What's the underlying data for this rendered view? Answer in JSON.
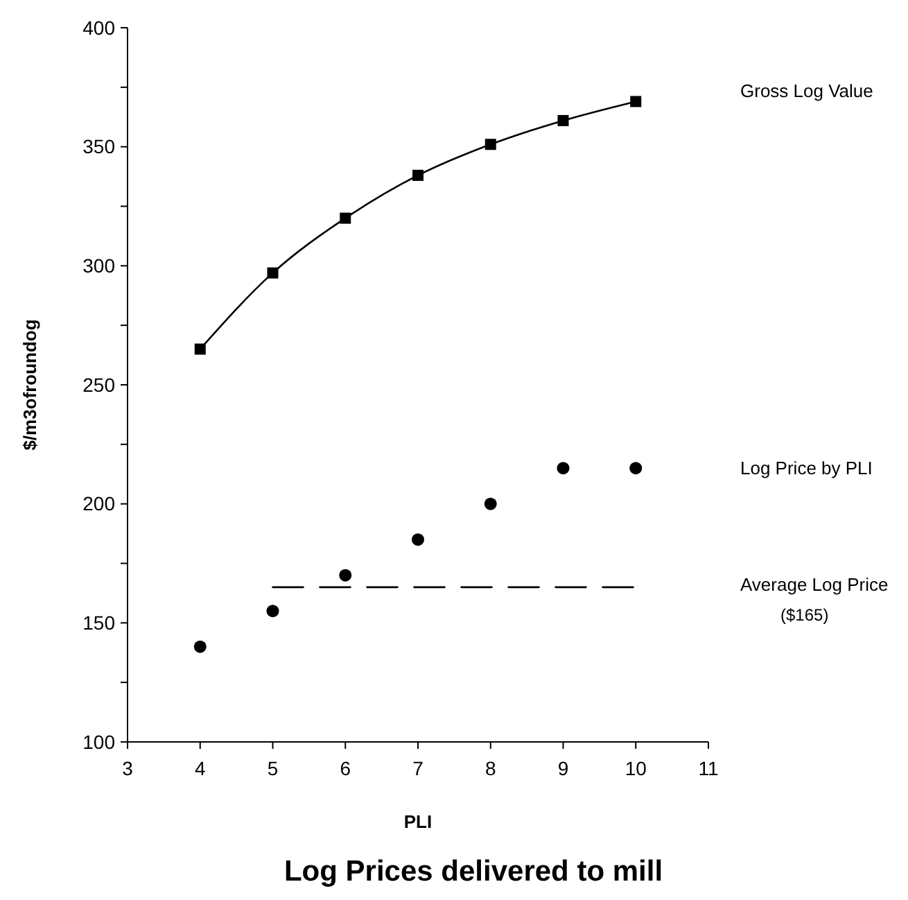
{
  "chart_data": {
    "type": "line",
    "title": "Log Prices delivered to mill",
    "xlabel": "PLI",
    "ylabel": "$/m3ofroundog",
    "x": [
      4,
      5,
      6,
      7,
      8,
      9,
      10
    ],
    "series": [
      {
        "name": "Gross Log Value",
        "color": "#000000",
        "marker": "square",
        "line_style": "solid",
        "values": [
          265,
          297,
          320,
          338,
          351,
          361,
          369
        ]
      },
      {
        "name": "Log Price by PLI",
        "type": "scatter",
        "color": "#000000",
        "marker": "circle",
        "values": [
          140,
          155,
          170,
          185,
          200,
          215,
          215
        ]
      },
      {
        "name": "Average Log Price",
        "color": "#000000",
        "marker": "none",
        "line_style": "dashed",
        "x": [
          5,
          10
        ],
        "values": [
          165,
          165
        ]
      }
    ],
    "annotations": [
      "($165)"
    ],
    "xlim": [
      3,
      11
    ],
    "xticks": [
      3,
      4,
      5,
      6,
      7,
      8,
      9,
      10,
      11
    ],
    "ylim": [
      100,
      400
    ],
    "yticks": [
      100,
      {
        "value": 125,
        "label": null
      },
      150,
      {
        "value": 175,
        "label": null
      },
      200,
      {
        "value": 225,
        "label": null
      },
      250,
      {
        "value": 275,
        "label": null
      },
      300,
      {
        "value": 325,
        "label": null
      },
      350,
      {
        "value": 375,
        "label": null
      },
      400
    ],
    "grid": false
  }
}
